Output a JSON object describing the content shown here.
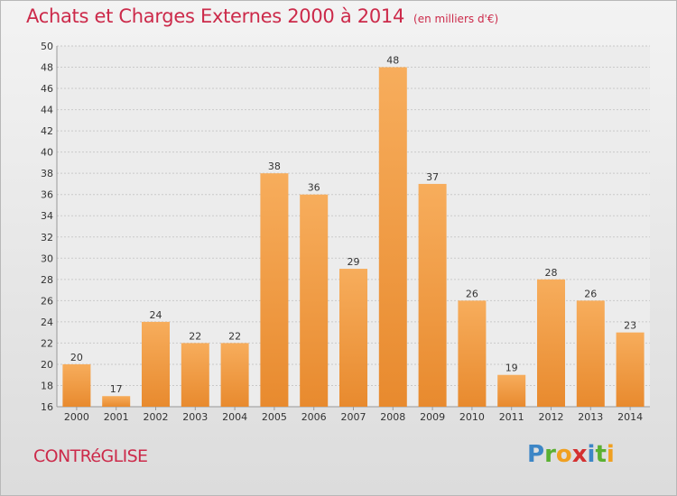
{
  "header": {
    "title": "Achats et Charges Externes 2000 à 2014",
    "unit": "(en milliers d'€)"
  },
  "footer": {
    "commune": "CONTRéGLISE",
    "logo": {
      "letters": [
        "P",
        "r",
        "o",
        "x",
        "i",
        "t",
        "i"
      ],
      "colors": [
        "#3d86c6",
        "#5ab031",
        "#f0a020",
        "#d43030",
        "#3d86c6",
        "#5ab031",
        "#f0a020"
      ]
    }
  },
  "chart_data": {
    "type": "bar",
    "title": "Achats et Charges Externes 2000 à 2014",
    "subtitle": "(en milliers d'€)",
    "categories": [
      "2000",
      "2001",
      "2002",
      "2003",
      "2004",
      "2005",
      "2006",
      "2007",
      "2008",
      "2009",
      "2010",
      "2011",
      "2012",
      "2013",
      "2014"
    ],
    "values": [
      20,
      17,
      24,
      22,
      22,
      38,
      36,
      29,
      48,
      37,
      26,
      19,
      28,
      26,
      23
    ],
    "ylim": [
      16,
      50
    ],
    "yticks": [
      16,
      18,
      20,
      22,
      24,
      26,
      28,
      30,
      32,
      34,
      36,
      38,
      40,
      42,
      44,
      46,
      48,
      50
    ],
    "grid": true,
    "bar_color": "#e88a2e",
    "bar_color_light": "#f7ad5c",
    "data_labels": true
  }
}
